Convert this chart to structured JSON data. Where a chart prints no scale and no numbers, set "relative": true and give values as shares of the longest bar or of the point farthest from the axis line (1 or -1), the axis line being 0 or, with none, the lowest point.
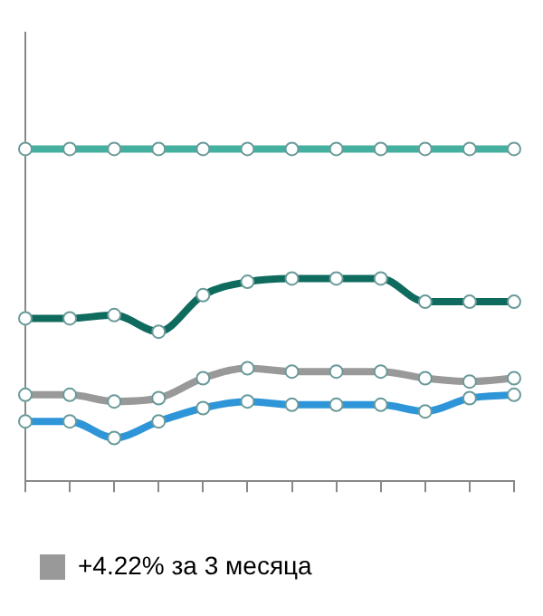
{
  "chart_data": {
    "type": "line",
    "relative": true,
    "categories": [
      null,
      null,
      null,
      null,
      null,
      null,
      null,
      null,
      null,
      null,
      null,
      null
    ],
    "series": [
      {
        "color": "#45b0a0",
        "values": [
          1,
          1,
          1,
          1,
          1,
          1,
          1,
          1,
          1,
          1,
          1,
          1
        ]
      },
      {
        "color": "#0e6b5e",
        "values": [
          0.49,
          0.49,
          0.5,
          0.45,
          0.56,
          0.6,
          0.61,
          0.61,
          0.61,
          0.54,
          0.54,
          0.54
        ]
      },
      {
        "name": "+4.22% за 3 месяца",
        "color": "#999999",
        "values": [
          0.26,
          0.26,
          0.24,
          0.25,
          0.31,
          0.34,
          0.33,
          0.33,
          0.33,
          0.31,
          0.3,
          0.31
        ]
      },
      {
        "color": "#2e95d8",
        "values": [
          0.18,
          0.18,
          0.13,
          0.18,
          0.22,
          0.24,
          0.23,
          0.23,
          0.23,
          0.21,
          0.25,
          0.26
        ]
      }
    ],
    "legend": "bottom left",
    "marker": "circle",
    "line_style": "solid"
  }
}
